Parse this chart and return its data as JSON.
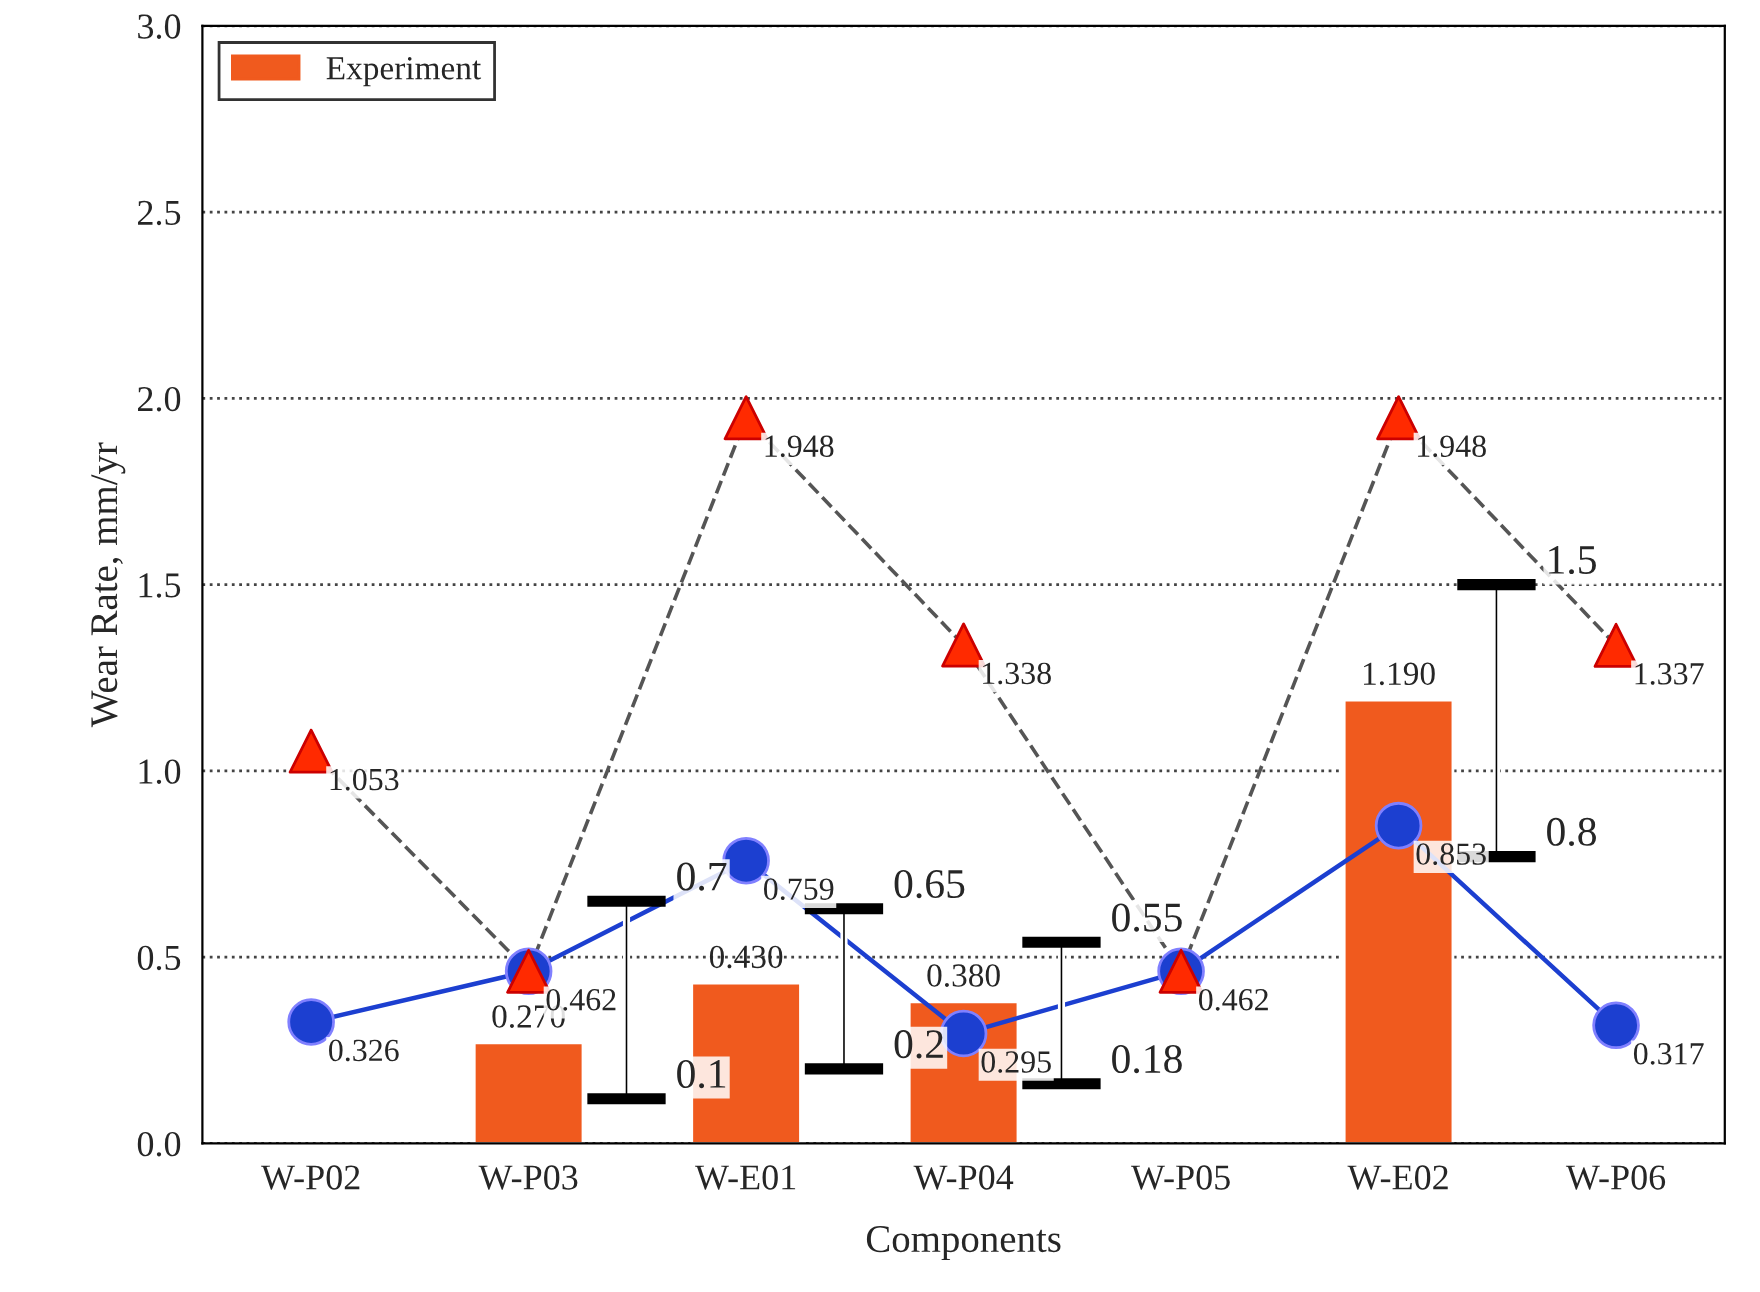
{
  "chart_data": {
    "type": "bar",
    "xlabel": "Components",
    "ylabel": "Wear Rate, mm/yr",
    "categories": [
      "W-P02",
      "W-P03",
      "W-E01",
      "W-P04",
      "W-P05",
      "W-E02",
      "W-P06"
    ],
    "ylim": [
      0,
      3
    ],
    "yticks": [
      {
        "value": 0,
        "label": "0.0"
      },
      {
        "value": 0.5,
        "label": "0.5"
      },
      {
        "value": 1,
        "label": "1.0"
      },
      {
        "value": 1.5,
        "label": "1.5"
      },
      {
        "value": 2,
        "label": "2.0"
      },
      {
        "value": 2.5,
        "label": "2.5"
      },
      {
        "value": 3,
        "label": "3.0"
      }
    ],
    "grid": "y",
    "legend": "top left",
    "series": [
      {
        "name": "Experiment",
        "color": "#f05a1e",
        "values": [
          null,
          0.27,
          0.43,
          0.38,
          null,
          1.19,
          null
        ],
        "value_labels": [
          null,
          "0.270",
          "0.430",
          "0.380",
          null,
          "1.190",
          null
        ]
      },
      {
        "type": "line",
        "color": "#1c3fd0",
        "marker": "circle",
        "line_style": "solid",
        "values": [
          0.326,
          0.462,
          0.759,
          0.295,
          0.462,
          0.853,
          0.317
        ],
        "value_labels": [
          "0.326",
          "0.462",
          "0.759",
          "0.295",
          "0.462",
          "0.853",
          "0.317"
        ]
      },
      {
        "type": "line",
        "color": "#555555",
        "marker": "triangle",
        "line_style": "dashed",
        "values": [
          1.053,
          0.462,
          1.948,
          1.338,
          0.462,
          1.948,
          1.337
        ],
        "value_labels": [
          "1.053",
          null,
          "1.948",
          "1.338",
          null,
          "1.948",
          "1.337"
        ]
      },
      {
        "type": "bar",
        "color": "#000000",
        "base": [
          null,
          0.12,
          0.2,
          0.16,
          null,
          0.77,
          null
        ],
        "values": [
          null,
          0.53,
          0.43,
          0.38,
          null,
          0.73,
          null
        ]
      }
    ],
    "annotations": [
      "0.7",
      "0.1",
      "0.65",
      "0.2",
      "0.55",
      "0.18",
      "1.5",
      "0.8"
    ]
  }
}
